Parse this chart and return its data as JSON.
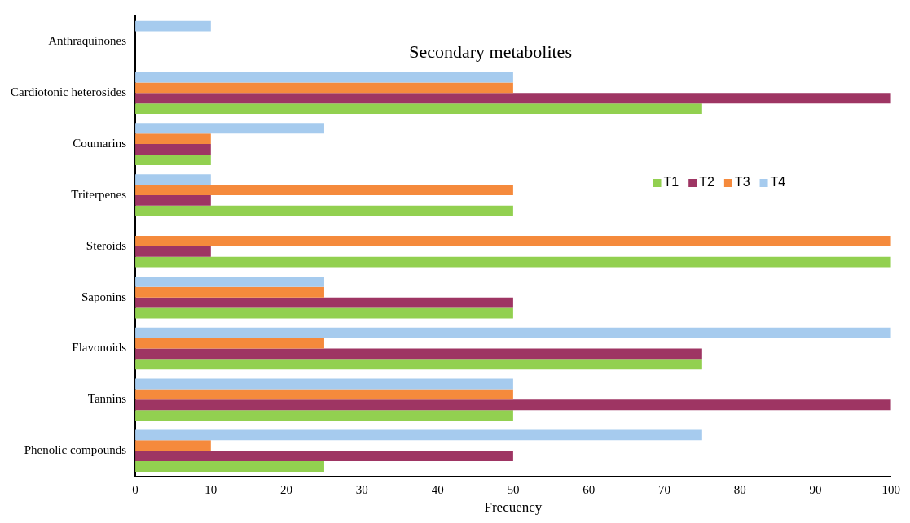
{
  "chart_data": {
    "type": "bar",
    "orientation": "horizontal",
    "title": "Secondary metabolites",
    "xlabel": "Frecuency",
    "categories": [
      "Anthraquinones",
      "Cardiotonic heterosides",
      "Coumarins",
      "Triterpenes",
      "Steroids",
      "Saponins",
      "Flavonoids",
      "Tannins",
      "Phenolic compounds"
    ],
    "series": [
      {
        "name": "T1",
        "color": "#92d050",
        "values": [
          null,
          75,
          10,
          50,
          100,
          50,
          75,
          50,
          25
        ]
      },
      {
        "name": "T2",
        "color": "#9e3563",
        "values": [
          null,
          100,
          10,
          10,
          10,
          50,
          75,
          100,
          50
        ]
      },
      {
        "name": "T3",
        "color": "#f58a3c",
        "values": [
          null,
          50,
          10,
          50,
          100,
          25,
          25,
          50,
          10
        ]
      },
      {
        "name": "T4",
        "color": "#a6cbee",
        "values": [
          10,
          50,
          25,
          10,
          null,
          25,
          100,
          50,
          75
        ]
      }
    ],
    "xlim": [
      0,
      100
    ],
    "xticks": [
      0,
      10,
      20,
      30,
      40,
      50,
      60,
      70,
      80,
      90,
      100
    ],
    "grid": false,
    "legend": "right"
  }
}
